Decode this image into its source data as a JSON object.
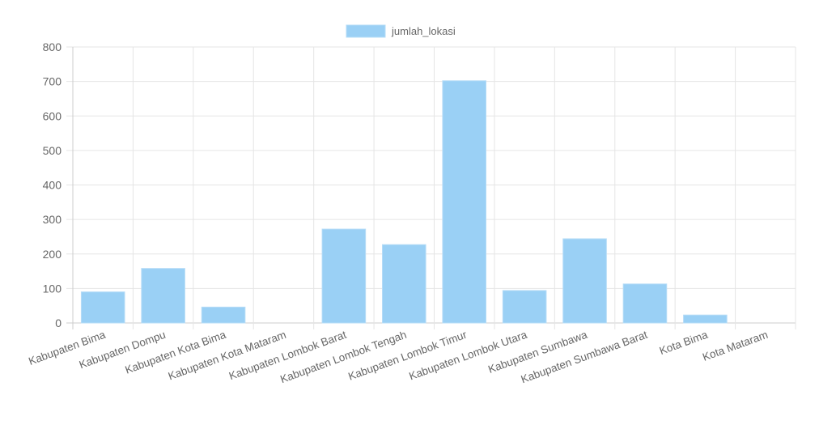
{
  "chart_data": {
    "type": "bar",
    "title": "",
    "xlabel": "",
    "ylabel": "",
    "categories": [
      "Kabupaten Bima",
      "Kabupaten Dompu",
      "Kabupaten Kota Bima",
      "Kabupaten Kota Mataram",
      "Kabupaten Lombok Barat",
      "Kabupaten Lombok Tengah",
      "Kabupaten Lombok Timur",
      "Kabupaten Lombok Utara",
      "Kabupaten Sumbawa",
      "Kabupaten Sumbawa Barat",
      "Kota Bima",
      "Kota Mataram"
    ],
    "series": [
      {
        "name": "jumlah_lokasi",
        "values": [
          90,
          158,
          46,
          0,
          272,
          227,
          702,
          94,
          244,
          113,
          23,
          0
        ]
      }
    ],
    "ylim": [
      0,
      800
    ],
    "yticks": [
      "0",
      "100",
      "200",
      "300",
      "400",
      "500",
      "600",
      "700",
      "800"
    ],
    "grid": true,
    "legend_position": "top",
    "colors": {
      "bar_fill": "#9ad0f5",
      "bar_border": "#b6dcf7",
      "grid": "#e5e5e5"
    }
  }
}
